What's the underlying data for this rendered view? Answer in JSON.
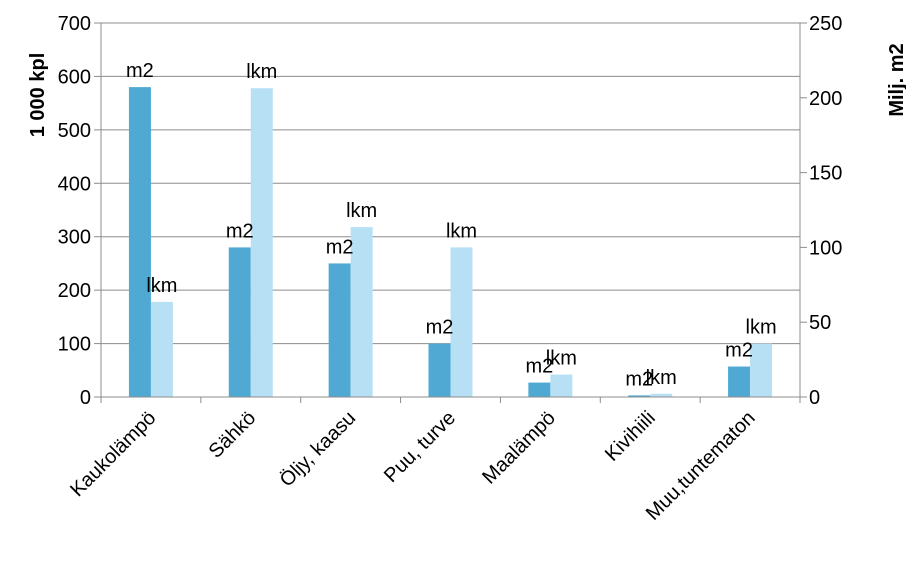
{
  "chart_data": {
    "type": "bar",
    "categories": [
      "Kaukolämpö",
      "Sähkö",
      "Öljy, kaasu",
      "Puu, turve",
      "Maalämpö",
      "Kivihiili",
      "Muu,tuntematon"
    ],
    "series": [
      {
        "name": "m2",
        "axis": "left",
        "values": [
          580,
          280,
          250,
          100,
          27,
          3,
          57
        ],
        "color": "#4FA9D2",
        "data_label": "m2"
      },
      {
        "name": "lkm",
        "axis": "left",
        "values": [
          178,
          578,
          318,
          280,
          42,
          6,
          100
        ],
        "color": "#B8E0F5",
        "data_label": "lkm"
      }
    ],
    "ylabel": "1 000 kpl",
    "y2label": "Milj. m2",
    "ylim": [
      0,
      700
    ],
    "y2lim": [
      0,
      250
    ],
    "yticks": [
      0,
      100,
      200,
      300,
      400,
      500,
      600,
      700
    ],
    "y2ticks": [
      0,
      50,
      100,
      150,
      200,
      250
    ],
    "grid": true,
    "legend": "none"
  }
}
